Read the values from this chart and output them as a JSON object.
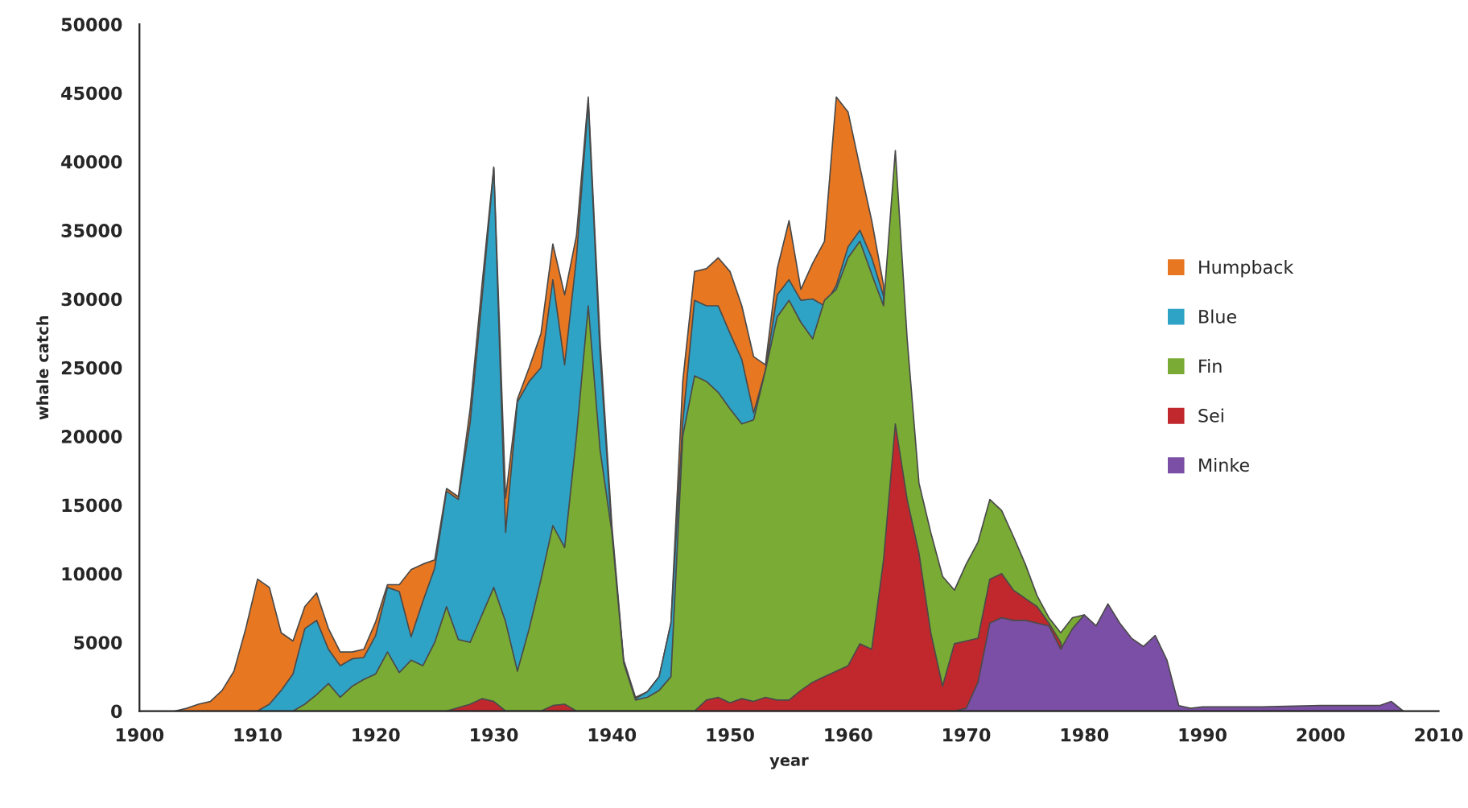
{
  "chart_data": {
    "type": "area",
    "xlabel": "year",
    "ylabel": "whale catch",
    "xlim": [
      1900,
      2010
    ],
    "xticks": [
      1900,
      1910,
      1920,
      1930,
      1940,
      1950,
      1960,
      1970,
      1980,
      1990,
      2000,
      2010
    ],
    "ylim": [
      0,
      50000
    ],
    "yticks": [
      0,
      5000,
      10000,
      15000,
      20000,
      25000,
      30000,
      35000,
      40000,
      45000,
      50000
    ],
    "grid": false,
    "legend": "right",
    "series": [
      {
        "name": "Humpback",
        "color": "#e87722",
        "x": [
          1903,
          1904,
          1905,
          1906,
          1907,
          1908,
          1909,
          1910,
          1911,
          1912,
          1913,
          1914,
          1915,
          1916,
          1917,
          1918,
          1919,
          1920,
          1921,
          1922,
          1923,
          1924,
          1925,
          1926,
          1927,
          1928,
          1929,
          1930,
          1931,
          1932,
          1933,
          1934,
          1935,
          1936,
          1937,
          1938,
          1939,
          1940,
          1941,
          1942,
          1943,
          1944,
          1945,
          1946,
          1947,
          1948,
          1949,
          1950,
          1951,
          1952,
          1953,
          1954,
          1955,
          1956,
          1957,
          1958,
          1959,
          1960,
          1961,
          1962,
          1963,
          1964
        ],
        "values": [
          0,
          200,
          500,
          700,
          1500,
          2900,
          6000,
          9600,
          9000,
          5700,
          5100,
          7600,
          8600,
          6000,
          4300,
          4300,
          4500,
          6500,
          9200,
          9200,
          10300,
          10700,
          11000,
          16200,
          15600,
          22000,
          31000,
          39600,
          15500,
          22700,
          25000,
          27500,
          34000,
          30300,
          34600,
          44700,
          27000,
          13500,
          3700,
          1000,
          1400,
          2500,
          6400,
          24000,
          32000,
          32200,
          33000,
          32000,
          29500,
          25800,
          25200,
          32200,
          35700,
          30700,
          32600,
          34200,
          44700,
          43600,
          39600,
          35700,
          31000,
          0
        ]
      },
      {
        "name": "Blue",
        "color": "#2fa3c6",
        "x": [
          1910,
          1911,
          1912,
          1913,
          1914,
          1915,
          1916,
          1917,
          1918,
          1919,
          1920,
          1921,
          1922,
          1923,
          1924,
          1925,
          1926,
          1927,
          1928,
          1929,
          1930,
          1931,
          1932,
          1933,
          1934,
          1935,
          1936,
          1937,
          1938,
          1939,
          1940,
          1941,
          1942,
          1943,
          1944,
          1945,
          1946,
          1947,
          1948,
          1949,
          1950,
          1951,
          1952,
          1953,
          1954,
          1955,
          1956,
          1957,
          1958,
          1959,
          1960,
          1961,
          1962,
          1963,
          1964
        ],
        "values": [
          0,
          500,
          1500,
          2700,
          6000,
          6600,
          4500,
          3300,
          3800,
          3900,
          5500,
          9000,
          8700,
          5400,
          8000,
          10400,
          16000,
          15400,
          21000,
          30000,
          39500,
          13000,
          22500,
          24000,
          25000,
          31400,
          25200,
          33000,
          44300,
          26000,
          13000,
          3500,
          900,
          1400,
          2500,
          6400,
          21000,
          29900,
          29500,
          29500,
          27500,
          25600,
          21700,
          24800,
          30300,
          31400,
          29900,
          30000,
          29500,
          31000,
          33800,
          35000,
          33000,
          30200,
          0
        ]
      },
      {
        "name": "Fin",
        "color": "#7aab35",
        "x": [
          1913,
          1914,
          1915,
          1916,
          1917,
          1918,
          1919,
          1920,
          1921,
          1922,
          1923,
          1924,
          1925,
          1926,
          1927,
          1928,
          1929,
          1930,
          1931,
          1932,
          1933,
          1934,
          1935,
          1936,
          1937,
          1938,
          1939,
          1940,
          1941,
          1942,
          1943,
          1944,
          1945,
          1946,
          1947,
          1948,
          1949,
          1950,
          1951,
          1952,
          1953,
          1954,
          1955,
          1956,
          1957,
          1958,
          1959,
          1960,
          1961,
          1962,
          1963,
          1964,
          1965,
          1966,
          1967,
          1968,
          1969,
          1970,
          1971,
          1972,
          1973,
          1974,
          1975,
          1976,
          1977,
          1978,
          1979,
          1980,
          1981
        ],
        "values": [
          0,
          500,
          1200,
          2000,
          1000,
          1800,
          2300,
          2700,
          4300,
          2800,
          3700,
          3300,
          5000,
          7600,
          5200,
          5000,
          7000,
          9000,
          6500,
          2900,
          6000,
          9600,
          13500,
          11900,
          20000,
          29500,
          19000,
          13000,
          3500,
          800,
          1000,
          1500,
          2500,
          20000,
          24400,
          24000,
          23200,
          22000,
          20900,
          21200,
          24800,
          28700,
          29900,
          28300,
          27100,
          29900,
          30700,
          33000,
          34200,
          31800,
          29500,
          40800,
          27100,
          16600,
          13000,
          9800,
          8800,
          10700,
          12300,
          15400,
          14600,
          12700,
          10700,
          8400,
          6800,
          5700,
          6800,
          7000,
          0
        ]
      },
      {
        "name": "Sei",
        "color": "#c0282d",
        "x": [
          1926,
          1928,
          1929,
          1930,
          1931,
          1934,
          1935,
          1936,
          1937,
          1947,
          1948,
          1949,
          1950,
          1951,
          1952,
          1953,
          1954,
          1955,
          1956,
          1957,
          1958,
          1959,
          1960,
          1961,
          1962,
          1963,
          1964,
          1965,
          1966,
          1967,
          1968,
          1969,
          1970,
          1971,
          1972,
          1973,
          1974,
          1975,
          1976,
          1977,
          1978,
          1979
        ],
        "values": [
          0,
          500,
          900,
          700,
          0,
          0,
          400,
          500,
          0,
          0,
          800,
          1000,
          600,
          900,
          700,
          1000,
          800,
          800,
          1500,
          2100,
          2500,
          2900,
          3300,
          4900,
          4500,
          11000,
          20900,
          15400,
          11500,
          5700,
          1800,
          4900,
          5100,
          5300,
          9600,
          10000,
          8800,
          8200,
          7600,
          6400,
          5000,
          0
        ]
      },
      {
        "name": "Minke",
        "color": "#7b4fa5",
        "x": [
          1969,
          1970,
          1971,
          1972,
          1973,
          1974,
          1975,
          1976,
          1977,
          1978,
          1979,
          1980,
          1981,
          1982,
          1983,
          1984,
          1985,
          1986,
          1987,
          1988,
          1989,
          1990,
          1995,
          2000,
          2005,
          2006,
          2007
        ],
        "values": [
          0,
          200,
          2100,
          6400,
          6800,
          6600,
          6600,
          6400,
          6200,
          4500,
          6000,
          7000,
          6200,
          7800,
          6400,
          5300,
          4700,
          5500,
          3700,
          400,
          200,
          300,
          300,
          400,
          400,
          700,
          0
        ]
      }
    ]
  }
}
